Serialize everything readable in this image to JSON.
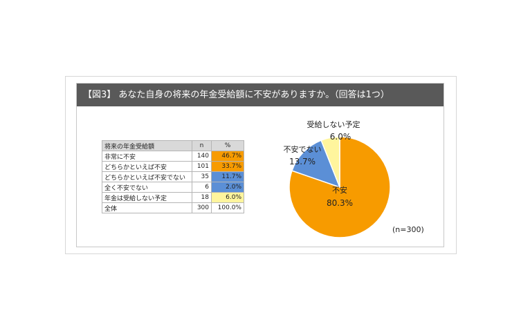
{
  "title": "【図3】 あなた自身の将来の年金受給額に不安がありますか。（回答は1つ）",
  "table": {
    "headers": [
      "将来の年金受給額",
      "n",
      "%"
    ],
    "rows": [
      {
        "label": "非常に不安",
        "n": "140",
        "pct": "46.7%",
        "color": "#f79b00"
      },
      {
        "label": "どちらかといえば不安",
        "n": "101",
        "pct": "33.7%",
        "color": "#f79b00"
      },
      {
        "label": "どちらかといえば不安でない",
        "n": "35",
        "pct": "11.7%",
        "color": "#5b8fd6"
      },
      {
        "label": "全く不安でない",
        "n": "6",
        "pct": "2.0%",
        "color": "#5b8fd6"
      },
      {
        "label": "年金は受給しない予定",
        "n": "18",
        "pct": "6.0%",
        "color": "#fff59d"
      }
    ],
    "total": {
      "label": "全体",
      "n": "300",
      "pct": "100.0%"
    }
  },
  "chart_data": {
    "type": "pie",
    "slices": [
      {
        "label": "不安",
        "value": 80.3,
        "value_label": "80.3%",
        "color": "#f79b00"
      },
      {
        "label": "不安でない",
        "value": 13.7,
        "value_label": "13.7%",
        "color": "#5b8fd6"
      },
      {
        "label": "受給しない予定",
        "value": 6.0,
        "value_label": "6.0%",
        "color": "#fff59d"
      }
    ],
    "start": "12 o'clock",
    "direction": "clockwise",
    "note": "(n=300)"
  }
}
